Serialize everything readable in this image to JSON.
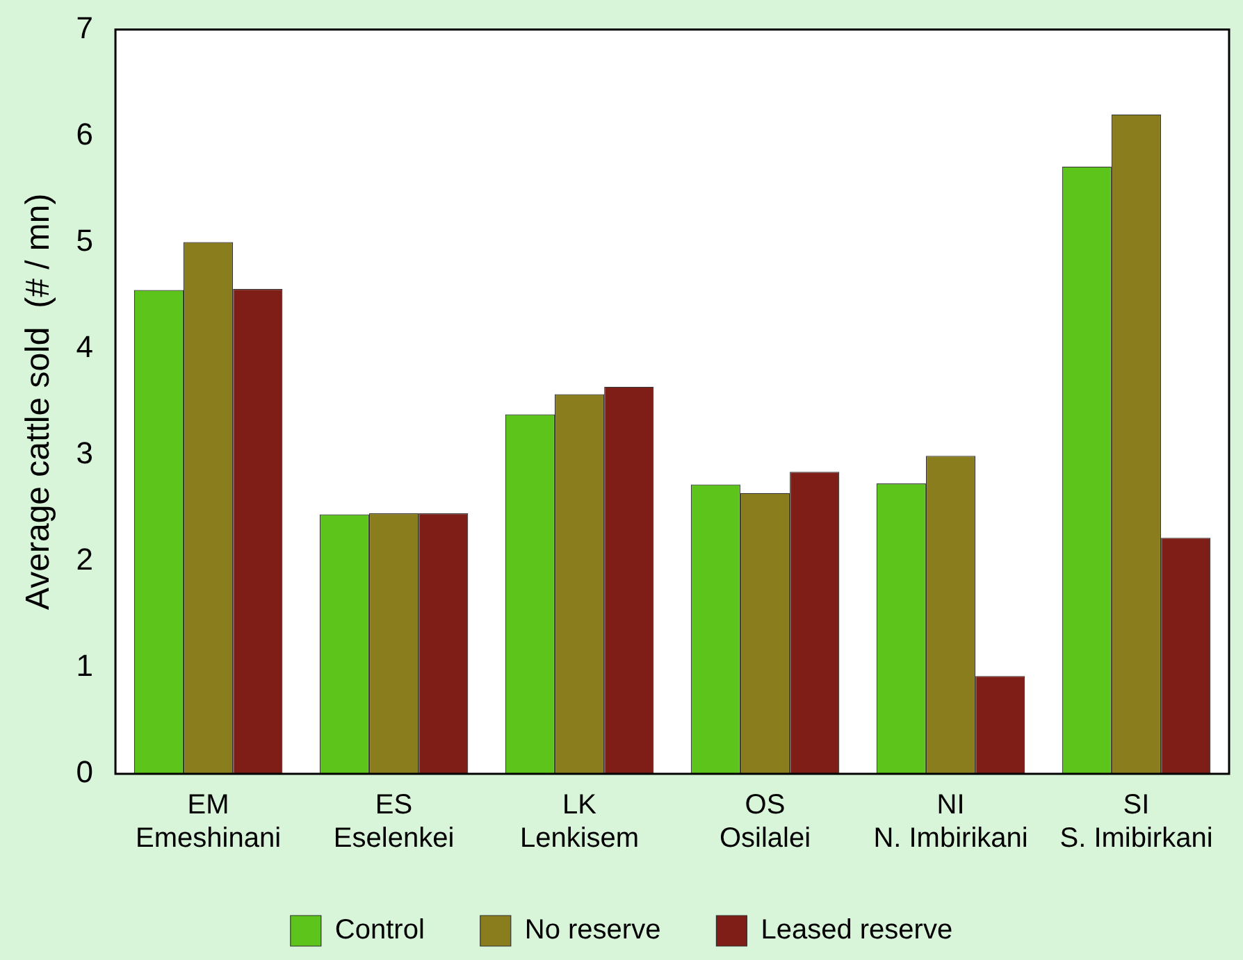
{
  "chart_data": {
    "type": "bar",
    "ylabel": "Average cattle sold  (# / mn)",
    "categories": [
      "EM\nEmeshinani",
      "ES\nEselenkei",
      "LK\nLenkisem",
      "OS\nOsilalei",
      "NI\nN. Imbirikani",
      "SI\nS. Imibirkani"
    ],
    "series": [
      {
        "name": "Control",
        "color": "#5cc41a",
        "values": [
          4.55,
          2.44,
          3.38,
          2.72,
          2.73,
          5.71
        ]
      },
      {
        "name": "No reserve",
        "color": "#8a7d1e",
        "values": [
          5.0,
          2.45,
          3.57,
          2.64,
          2.99,
          6.2
        ]
      },
      {
        "name": "Leased reserve",
        "color": "#7e1e16",
        "values": [
          4.56,
          2.45,
          3.64,
          2.84,
          0.92,
          2.22
        ]
      }
    ],
    "ylim": [
      0,
      7
    ],
    "yticks": [
      0,
      1,
      2,
      3,
      4,
      5,
      6,
      7
    ],
    "grid": false,
    "legend": "bottom"
  }
}
